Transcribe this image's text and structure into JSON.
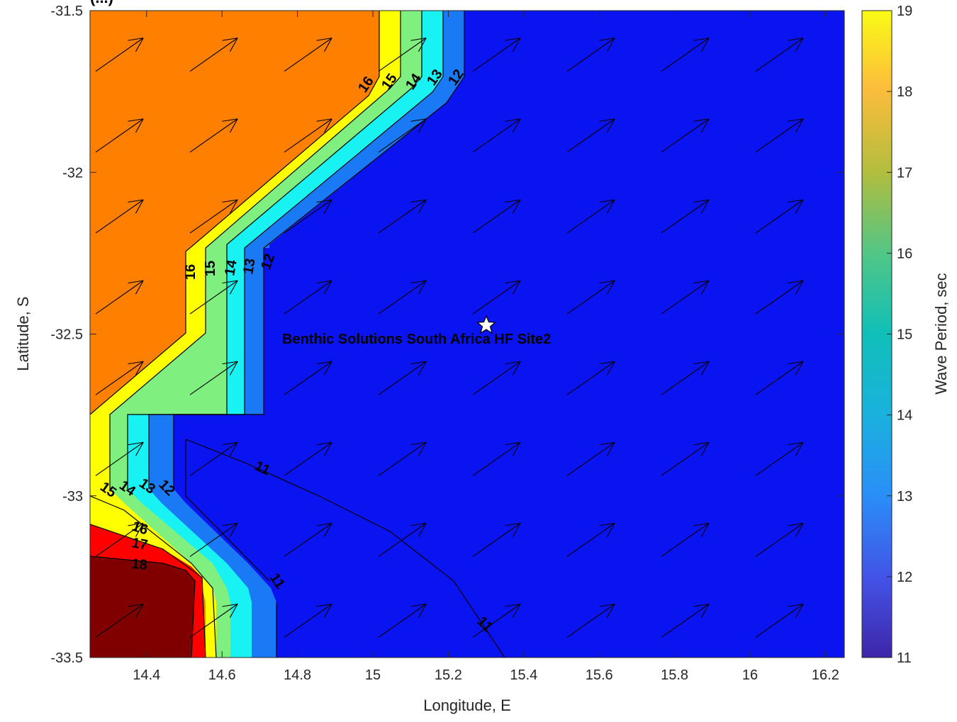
{
  "chart_data": {
    "type": "contour",
    "title_fragment": "(...)",
    "xlabel": "Longitude, E",
    "ylabel": "Latitude, S",
    "xlim": [
      14.25,
      16.25
    ],
    "ylim": [
      -33.5,
      -31.5
    ],
    "x_ticks": [
      "14.4",
      "14.6",
      "14.8",
      "15",
      "15.2",
      "15.4",
      "15.6",
      "15.8",
      "16",
      "16.2"
    ],
    "y_ticks": [
      "-31.5",
      "-32",
      "-32.5",
      "-33",
      "-33.5"
    ],
    "colorbar": {
      "label": "Wave Period, sec",
      "range": [
        11,
        19
      ],
      "ticks": [
        "19",
        "18",
        "17",
        "16",
        "15",
        "14",
        "13",
        "12",
        "11"
      ]
    },
    "contour_labels": [
      "16",
      "15",
      "14",
      "13",
      "12",
      "11",
      "17",
      "18"
    ],
    "site": {
      "name": "Benthic Solutions South Africa HF Site2",
      "lon": 15.31,
      "lat": -32.47
    },
    "vectors": "uniform field pointing toward the north-east (approx. 30 degrees above east)",
    "colors": {
      "background_region": "#0a14f0",
      "level_12": "#1a7af5",
      "level_13": "#19f2f2",
      "level_14": "#7ff07f",
      "level_15": "#ffff00",
      "level_16": "#ff8000",
      "level_17": "#ff0000",
      "level_18": "#800000"
    }
  }
}
